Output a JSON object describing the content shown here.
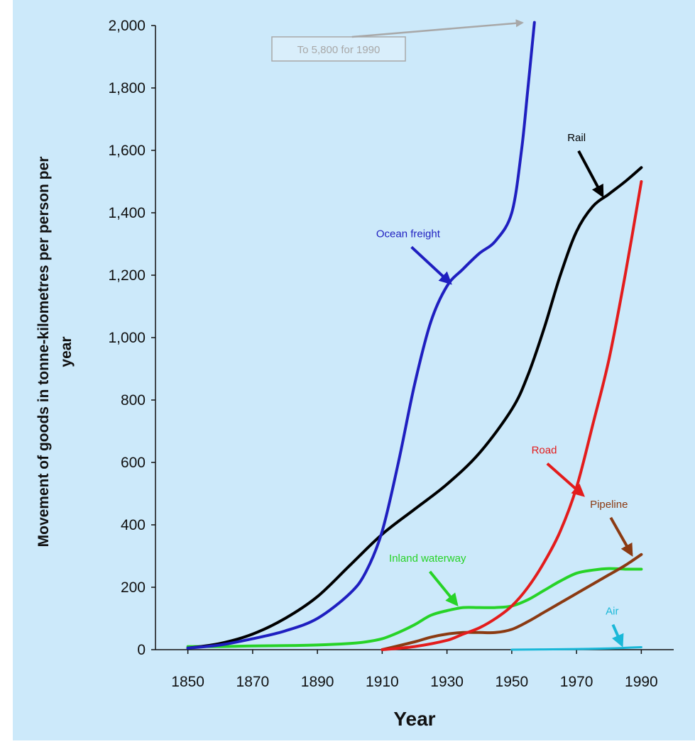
{
  "chart_data": {
    "type": "line",
    "title": "",
    "xlabel": "Year",
    "ylabel": "Movement of goods in tonne-kilometres per person per year",
    "xlim": [
      1840,
      2000
    ],
    "ylim": [
      0,
      2000
    ],
    "x_ticks": [
      "1850",
      "1870",
      "1890",
      "1910",
      "1930",
      "1950",
      "1970",
      "1990"
    ],
    "y_ticks": [
      "0",
      "200",
      "400",
      "600",
      "800",
      "1,000",
      "1,200",
      "1,400",
      "1,600",
      "1,800",
      "2,000"
    ],
    "grid": false,
    "annotation": "To 5,800 for 1990",
    "colors": {
      "background": "#cce9fa",
      "ocean_freight": "#1f1fc0",
      "rail": "#000000",
      "road": "#e31c1c",
      "pipeline": "#8b3a12",
      "inland_waterway": "#27d327",
      "air": "#1ab8d8",
      "annotation": "#a8a8a8"
    },
    "series": [
      {
        "name": "Ocean freight",
        "key": "ocean_freight",
        "x": [
          1850,
          1860,
          1870,
          1880,
          1890,
          1900,
          1905,
          1910,
          1915,
          1920,
          1925,
          1930,
          1935,
          1940,
          1945,
          1950,
          1953,
          1955,
          1957
        ],
        "y": [
          5,
          15,
          35,
          60,
          100,
          180,
          250,
          380,
          600,
          850,
          1050,
          1165,
          1220,
          1270,
          1310,
          1400,
          1600,
          1800,
          2010
        ]
      },
      {
        "name": "Rail",
        "key": "rail",
        "x": [
          1850,
          1860,
          1870,
          1880,
          1890,
          1900,
          1910,
          1920,
          1930,
          1940,
          1950,
          1955,
          1960,
          1965,
          1970,
          1975,
          1980,
          1985,
          1990
        ],
        "y": [
          5,
          20,
          50,
          100,
          170,
          270,
          370,
          450,
          530,
          630,
          770,
          880,
          1030,
          1200,
          1340,
          1420,
          1460,
          1500,
          1545
        ]
      },
      {
        "name": "Road",
        "key": "road",
        "x": [
          1910,
          1920,
          1930,
          1935,
          1940,
          1945,
          1950,
          1955,
          1960,
          1965,
          1970,
          1975,
          1980,
          1985,
          1990
        ],
        "y": [
          0,
          10,
          30,
          50,
          70,
          100,
          140,
          200,
          280,
          380,
          520,
          720,
          930,
          1200,
          1500
        ]
      },
      {
        "name": "Pipeline",
        "key": "pipeline",
        "x": [
          1910,
          1920,
          1925,
          1930,
          1935,
          1940,
          1945,
          1950,
          1955,
          1960,
          1965,
          1970,
          1975,
          1980,
          1985,
          1990
        ],
        "y": [
          0,
          25,
          40,
          50,
          55,
          55,
          55,
          65,
          90,
          120,
          150,
          180,
          210,
          240,
          270,
          305
        ]
      },
      {
        "name": "Inland waterway",
        "key": "inland_waterway",
        "x": [
          1850,
          1860,
          1870,
          1880,
          1890,
          1900,
          1905,
          1910,
          1915,
          1920,
          1925,
          1930,
          1935,
          1940,
          1945,
          1950,
          1955,
          1960,
          1965,
          1970,
          1975,
          1980,
          1985,
          1990
        ],
        "y": [
          10,
          10,
          12,
          13,
          15,
          20,
          25,
          35,
          55,
          80,
          110,
          125,
          135,
          135,
          135,
          140,
          160,
          190,
          220,
          245,
          255,
          260,
          258,
          258
        ]
      },
      {
        "name": "Air",
        "key": "air",
        "x": [
          1950,
          1960,
          1970,
          1980,
          1985,
          1990
        ],
        "y": [
          0,
          1,
          2,
          4,
          6,
          8
        ]
      }
    ],
    "labels": [
      {
        "text": "Ocean freight",
        "key": "ocean_freight",
        "at": [
          1918,
          1322
        ],
        "arrow_to": [
          1931,
          1175
        ]
      },
      {
        "text": "Rail",
        "key": "rail",
        "at": [
          1970,
          1630
        ],
        "arrow_to": [
          1978,
          1455
        ]
      },
      {
        "text": "Road",
        "key": "road",
        "at": [
          1960,
          628
        ],
        "arrow_to": [
          1972,
          495
        ]
      },
      {
        "text": "Pipeline",
        "key": "pipeline",
        "at": [
          1980,
          455
        ],
        "arrow_to": [
          1987,
          305
        ]
      },
      {
        "text": "Inland waterway",
        "key": "inland_waterway",
        "at": [
          1924,
          282
        ],
        "arrow_to": [
          1933,
          145
        ]
      },
      {
        "text": "Air",
        "key": "air",
        "at": [
          1981,
          112
        ],
        "arrow_to": [
          1984,
          15
        ]
      }
    ]
  }
}
